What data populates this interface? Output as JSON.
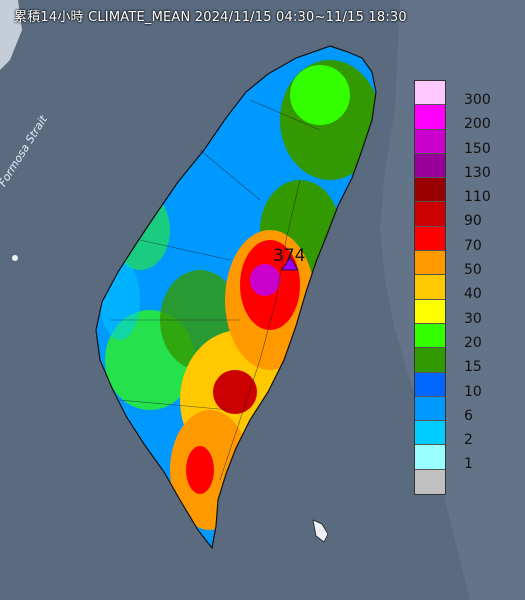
{
  "title": "累積14小時 CLIMATE_MEAN 2024/11/15 04:30~11/15 18:30",
  "strait_label": "Formosa Strait",
  "max_value": "374",
  "legend": {
    "levels": [
      "300",
      "200",
      "150",
      "130",
      "110",
      "90",
      "70",
      "50",
      "40",
      "30",
      "20",
      "15",
      "10",
      "6",
      "2",
      "1"
    ],
    "colors": [
      "#ffc8ff",
      "#ff00ff",
      "#cc00cc",
      "#990099",
      "#990000",
      "#cc0000",
      "#ff0000",
      "#ff9900",
      "#ffc800",
      "#ffff00",
      "#33ff00",
      "#339900",
      "#0066ff",
      "#0099ff",
      "#00ccff",
      "#99ffff",
      "#c0c0c0"
    ]
  },
  "colors": {
    "sea": "#5a6b80",
    "neighbor_land": "#eef2f6"
  }
}
